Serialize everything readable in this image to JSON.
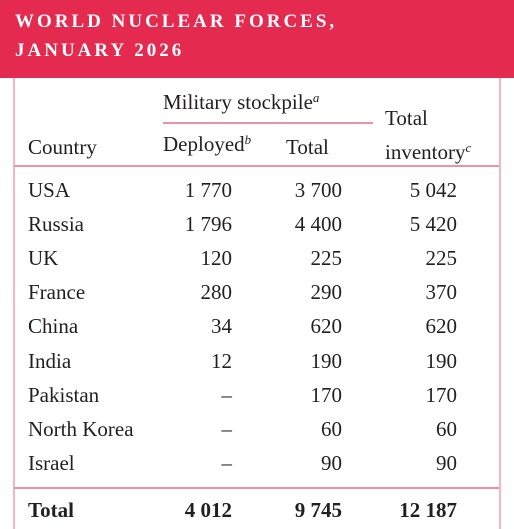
{
  "header": {
    "title": [
      "WORLD NUCLEAR FORCES,",
      "JANUARY 2026"
    ]
  },
  "table": {
    "group": {
      "label": "Military stockpile",
      "note": "a"
    },
    "columns": [
      {
        "label": "Country"
      },
      {
        "label": "Deployed",
        "note": "b"
      },
      {
        "label": "Total"
      },
      {
        "label": "Total inventory",
        "note": "c"
      }
    ],
    "rows": [
      [
        "USA",
        "1 770",
        "3 700",
        "5 042"
      ],
      [
        "Russia",
        "1 796",
        "4 400",
        "5 420"
      ],
      [
        "UK",
        "120",
        "225",
        "225"
      ],
      [
        "France",
        "280",
        "290",
        "370"
      ],
      [
        "China",
        "34",
        "620",
        "620"
      ],
      [
        "India",
        "12",
        "190",
        "190"
      ],
      [
        "Pakistan",
        "–",
        "170",
        "170"
      ],
      [
        "North Korea",
        "–",
        "60",
        "60"
      ],
      [
        "Israel",
        "–",
        "90",
        "90"
      ]
    ],
    "total": [
      "Total",
      "4 012",
      "9 745",
      "12 187"
    ]
  }
}
